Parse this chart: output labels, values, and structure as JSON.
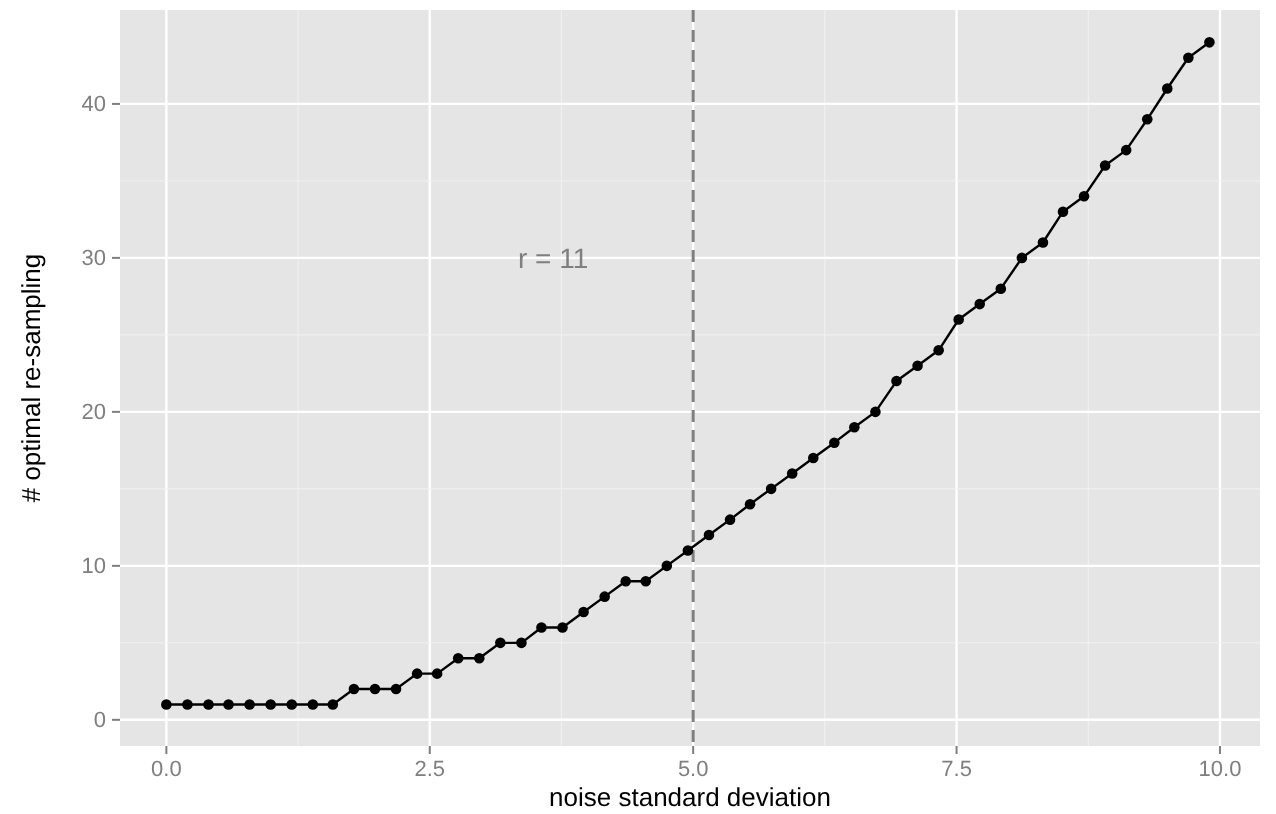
{
  "chart_data": {
    "type": "line",
    "xlabel": "noise standard deviation",
    "ylabel": "# optimal re-sampling",
    "x": [
      0,
      0.2,
      0.4,
      0.59,
      0.79,
      0.99,
      1.19,
      1.39,
      1.58,
      1.78,
      1.98,
      2.18,
      2.38,
      2.57,
      2.77,
      2.97,
      3.17,
      3.37,
      3.56,
      3.76,
      3.96,
      4.16,
      4.36,
      4.55,
      4.75,
      4.95,
      5.15,
      5.35,
      5.54,
      5.74,
      5.94,
      6.14,
      6.34,
      6.53,
      6.73,
      6.93,
      7.13,
      7.33,
      7.52,
      7.72,
      7.92,
      8.12,
      8.32,
      8.51,
      8.71,
      8.91,
      9.11,
      9.31,
      9.5,
      9.7,
      9.9
    ],
    "series": [
      {
        "color": "#000000",
        "values": [
          1,
          1,
          1,
          1,
          1,
          1,
          1,
          1,
          1,
          2,
          2,
          2,
          3,
          3,
          4,
          4,
          5,
          5,
          6,
          6,
          7,
          8,
          9,
          9,
          10,
          11,
          12,
          13,
          14,
          15,
          16,
          17,
          18,
          19,
          20,
          22,
          23,
          24,
          26,
          27,
          28,
          30,
          31,
          33,
          34,
          36,
          37,
          39,
          41,
          43,
          44
        ]
      }
    ],
    "xlim": [
      -0.44,
      10.38
    ],
    "ylim": [
      -1.7,
      46.1
    ],
    "xticks": [
      {
        "value": 0,
        "label": "0.0"
      },
      {
        "value": 2.5,
        "label": "2.5"
      },
      {
        "value": 5,
        "label": "5.0"
      },
      {
        "value": 7.5,
        "label": "7.5"
      },
      {
        "value": 10,
        "label": "10.0"
      }
    ],
    "yticks": [
      0,
      10,
      20,
      30,
      40
    ],
    "grid": true,
    "marker": "circle",
    "line_style": "solid",
    "ref_lines": [
      {
        "axis": "x",
        "value": 5,
        "color": "#7f7f7f",
        "line_style": "dashed"
      }
    ],
    "annotations": [
      "r = 11"
    ]
  }
}
